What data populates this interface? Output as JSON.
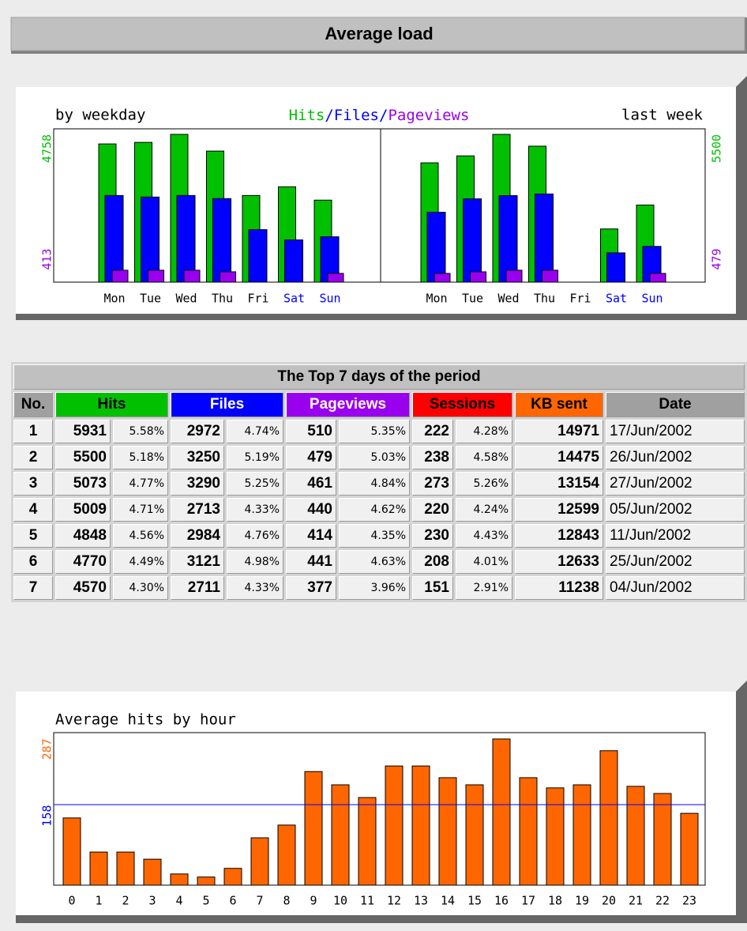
{
  "header": {
    "title": "Average load"
  },
  "chart_data": [
    {
      "type": "bar",
      "legend_separator": "/",
      "panels": [
        {
          "subtitle": "by weekday",
          "categories": [
            "Mon",
            "Tue",
            "Wed",
            "Thu",
            "Fri",
            "Sat",
            "Sun"
          ],
          "category_colors": [
            "#000000",
            "#000000",
            "#000000",
            "#000000",
            "#000000",
            "#0000ff",
            "#0000ff"
          ],
          "ylim": [
            0,
            4758
          ],
          "y_label_bottom": 413,
          "series": [
            {
              "name": "Hits",
              "color": "#00c000",
              "values": [
                4450,
                4500,
                4758,
                4220,
                2790,
                3070,
                2640
              ]
            },
            {
              "name": "Files",
              "color": "#0000ff",
              "values": [
                2790,
                2740,
                2790,
                2690,
                1690,
                1360,
                1460
              ]
            },
            {
              "name": "Pageviews",
              "color": "#9900ee",
              "values": [
                384,
                384,
                384,
                333,
                null,
                null,
                282
              ]
            }
          ]
        },
        {
          "subtitle": "last week",
          "categories": [
            "Mon",
            "Tue",
            "Wed",
            "Thu",
            "Fri",
            "Sat",
            "Sun"
          ],
          "category_colors": [
            "#000000",
            "#000000",
            "#000000",
            "#000000",
            "#000000",
            "#0000ff",
            "#0000ff"
          ],
          "ylim": [
            0,
            5500
          ],
          "y_label_bottom": 479,
          "series": [
            {
              "name": "Hits",
              "color": "#00c000",
              "values": [
                4440,
                4700,
                5500,
                5060,
                null,
                1980,
                2870
              ]
            },
            {
              "name": "Files",
              "color": "#0000ff",
              "values": [
                2600,
                3100,
                3220,
                3280,
                null,
                1090,
                1330
              ]
            },
            {
              "name": "Pageviews",
              "color": "#9900ee",
              "values": [
                325,
                384,
                444,
                444,
                null,
                null,
                325
              ]
            }
          ]
        }
      ]
    },
    {
      "type": "bar",
      "title": "Average hits by hour",
      "categories": [
        "0",
        "1",
        "2",
        "3",
        "4",
        "5",
        "6",
        "7",
        "8",
        "9",
        "10",
        "11",
        "12",
        "13",
        "14",
        "15",
        "16",
        "17",
        "18",
        "19",
        "20",
        "21",
        "22",
        "23"
      ],
      "values": [
        132,
        65,
        65,
        51,
        22,
        16,
        33,
        93,
        118,
        223,
        197,
        172,
        234,
        234,
        211,
        197,
        287,
        211,
        191,
        197,
        264,
        194,
        180,
        141
      ],
      "color": "#ff6600",
      "ylim": [
        0,
        287
      ],
      "average": 158,
      "average_color": "#0000ff"
    }
  ],
  "table": {
    "title": "The Top 7 days of the period",
    "columns": [
      {
        "label": "No.",
        "color": "#a0a0a0",
        "text_color": "#000000",
        "span": 1
      },
      {
        "label": "Hits",
        "color": "#00c000",
        "text_color": "#000000",
        "span": 2
      },
      {
        "label": "Files",
        "color": "#0000ff",
        "text_color": "#ffffff",
        "span": 2
      },
      {
        "label": "Pageviews",
        "color": "#9900ee",
        "text_color": "#ffffff",
        "span": 2
      },
      {
        "label": "Sessions",
        "color": "#ff0000",
        "text_color": "#000000",
        "span": 2
      },
      {
        "label": "KB sent",
        "color": "#ff6600",
        "text_color": "#000000",
        "span": 1
      },
      {
        "label": "Date",
        "color": "#a0a0a0",
        "text_color": "#000000",
        "span": 1
      }
    ],
    "rows": [
      [
        "1",
        "5931",
        "5.58%",
        "2972",
        "4.74%",
        "510",
        "5.35%",
        "222",
        "4.28%",
        "14971",
        "17/Jun/2002"
      ],
      [
        "2",
        "5500",
        "5.18%",
        "3250",
        "5.19%",
        "479",
        "5.03%",
        "238",
        "4.58%",
        "14475",
        "26/Jun/2002"
      ],
      [
        "3",
        "5073",
        "4.77%",
        "3290",
        "5.25%",
        "461",
        "4.84%",
        "273",
        "5.26%",
        "13154",
        "27/Jun/2002"
      ],
      [
        "4",
        "5009",
        "4.71%",
        "2713",
        "4.33%",
        "440",
        "4.62%",
        "220",
        "4.24%",
        "12599",
        "05/Jun/2002"
      ],
      [
        "5",
        "4848",
        "4.56%",
        "2984",
        "4.76%",
        "414",
        "4.35%",
        "230",
        "4.43%",
        "12843",
        "11/Jun/2002"
      ],
      [
        "6",
        "4770",
        "4.49%",
        "3121",
        "4.98%",
        "441",
        "4.63%",
        "208",
        "4.01%",
        "12633",
        "25/Jun/2002"
      ],
      [
        "7",
        "4570",
        "4.30%",
        "2711",
        "4.33%",
        "377",
        "3.96%",
        "151",
        "2.91%",
        "11238",
        "04/Jun/2002"
      ]
    ]
  }
}
